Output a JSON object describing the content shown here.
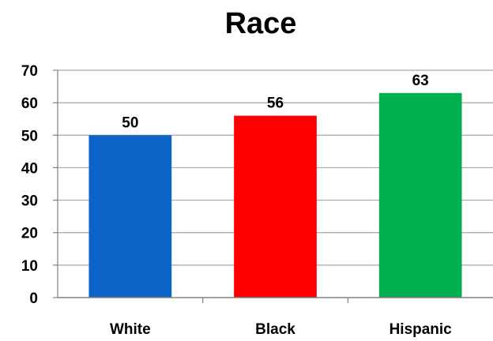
{
  "chart_data": {
    "type": "bar",
    "title": "Race",
    "categories": [
      "White",
      "Black",
      "Hispanic"
    ],
    "values": [
      50,
      56,
      63
    ],
    "bar_colors": [
      "#0c63c8",
      "#ff0000",
      "#00b050"
    ],
    "ylim": [
      0,
      70
    ],
    "yticks": [
      "0",
      "10",
      "20",
      "30",
      "40",
      "50",
      "60",
      "70"
    ],
    "grid": true,
    "legend": "none",
    "xlabel": "",
    "ylabel": ""
  },
  "colors": {
    "gridline": "#a6a6a6",
    "axis": "#808080"
  }
}
